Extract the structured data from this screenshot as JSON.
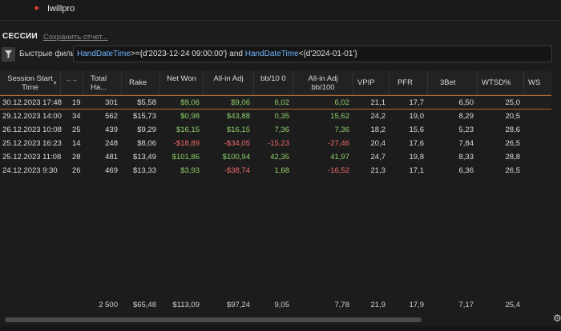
{
  "app": {
    "name": "Iwillpro",
    "logo_icon": "poker-star-icon"
  },
  "section": {
    "title": "СЕССИИ",
    "save_report": "Сохранить отчет..."
  },
  "filter": {
    "label": "Быстрые фильтры",
    "expr_key1": "HandDateTime",
    "expr_op1": ">={d'2023-12-24 09:00:00'} and ",
    "expr_key2": "HandDateTime",
    "expr_op2": "<{d'2024-01-01'}"
  },
  "columns": {
    "session_start": "Session Start Time",
    "hands_short": ".. ..",
    "total_hands": "Total Ha...",
    "rake": "Rake",
    "net_won": "Net Won",
    "allin_adj": "All-in Adj",
    "bb100": "bb/10 0",
    "allin_adj_bb100": "All-in Adj bb/100",
    "vpip": "VPIP",
    "pfr": "PFR",
    "threebet": "3Bet",
    "wtsd": "WTSD%",
    "ws": "WS"
  },
  "rows": [
    {
      "start": "30.12.2023 17:48",
      "mins": "19",
      "hands": "301",
      "rake": "$5,58",
      "net": "$9,06",
      "allin": "$9,06",
      "bb": "6,02",
      "allinbb": "6,02",
      "vpip": "21,1",
      "pfr": "17,7",
      "threebet": "6,50",
      "wtsd": "25,0"
    },
    {
      "start": "29.12.2023 14:00",
      "mins": "34",
      "hands": "562",
      "rake": "$15,73",
      "net": "$0,98",
      "allin": "$43,88",
      "bb": "0,35",
      "allinbb": "15,62",
      "vpip": "24,2",
      "pfr": "19,0",
      "threebet": "8,29",
      "wtsd": "20,5"
    },
    {
      "start": "26.12.2023 10:08",
      "mins": "25",
      "hands": "439",
      "rake": "$9,29",
      "net": "$16,15",
      "allin": "$16,15",
      "bb": "7,36",
      "allinbb": "7,36",
      "vpip": "18,2",
      "pfr": "15,6",
      "threebet": "5,23",
      "wtsd": "28,6"
    },
    {
      "start": "25.12.2023 16:23",
      "mins": "14",
      "hands": "248",
      "rake": "$8,06",
      "net": "-$18,89",
      "allin": "-$34,05",
      "bb": "-15,23",
      "allinbb": "-27,46",
      "vpip": "20,4",
      "pfr": "17,6",
      "threebet": "7,84",
      "wtsd": "26,5"
    },
    {
      "start": "25.12.2023 11:08",
      "mins": "28",
      "hands": "481",
      "rake": "$13,49",
      "net": "$101,86",
      "allin": "$100,94",
      "bb": "42,35",
      "allinbb": "41,97",
      "vpip": "24,7",
      "pfr": "19,8",
      "threebet": "8,33",
      "wtsd": "28,8"
    },
    {
      "start": "24.12.2023 9:30",
      "mins": "26",
      "hands": "469",
      "rake": "$13,33",
      "net": "$3,93",
      "allin": "-$38,74",
      "bb": "1,68",
      "allinbb": "-16,52",
      "vpip": "21,3",
      "pfr": "17,1",
      "threebet": "6,36",
      "wtsd": "26,5"
    }
  ],
  "totals": {
    "hands": "2 500",
    "rake": "$65,48",
    "net": "$113,09",
    "allin": "$97,24",
    "bb": "9,05",
    "allinbb": "7,78",
    "vpip": "21,9",
    "pfr": "17,9",
    "threebet": "7,17",
    "wtsd": "25,4"
  },
  "colors": {
    "positive": "#8fd26a",
    "negative": "#f26a6a",
    "accent": "#e8412c",
    "selected_outline": "#b06a2a"
  }
}
